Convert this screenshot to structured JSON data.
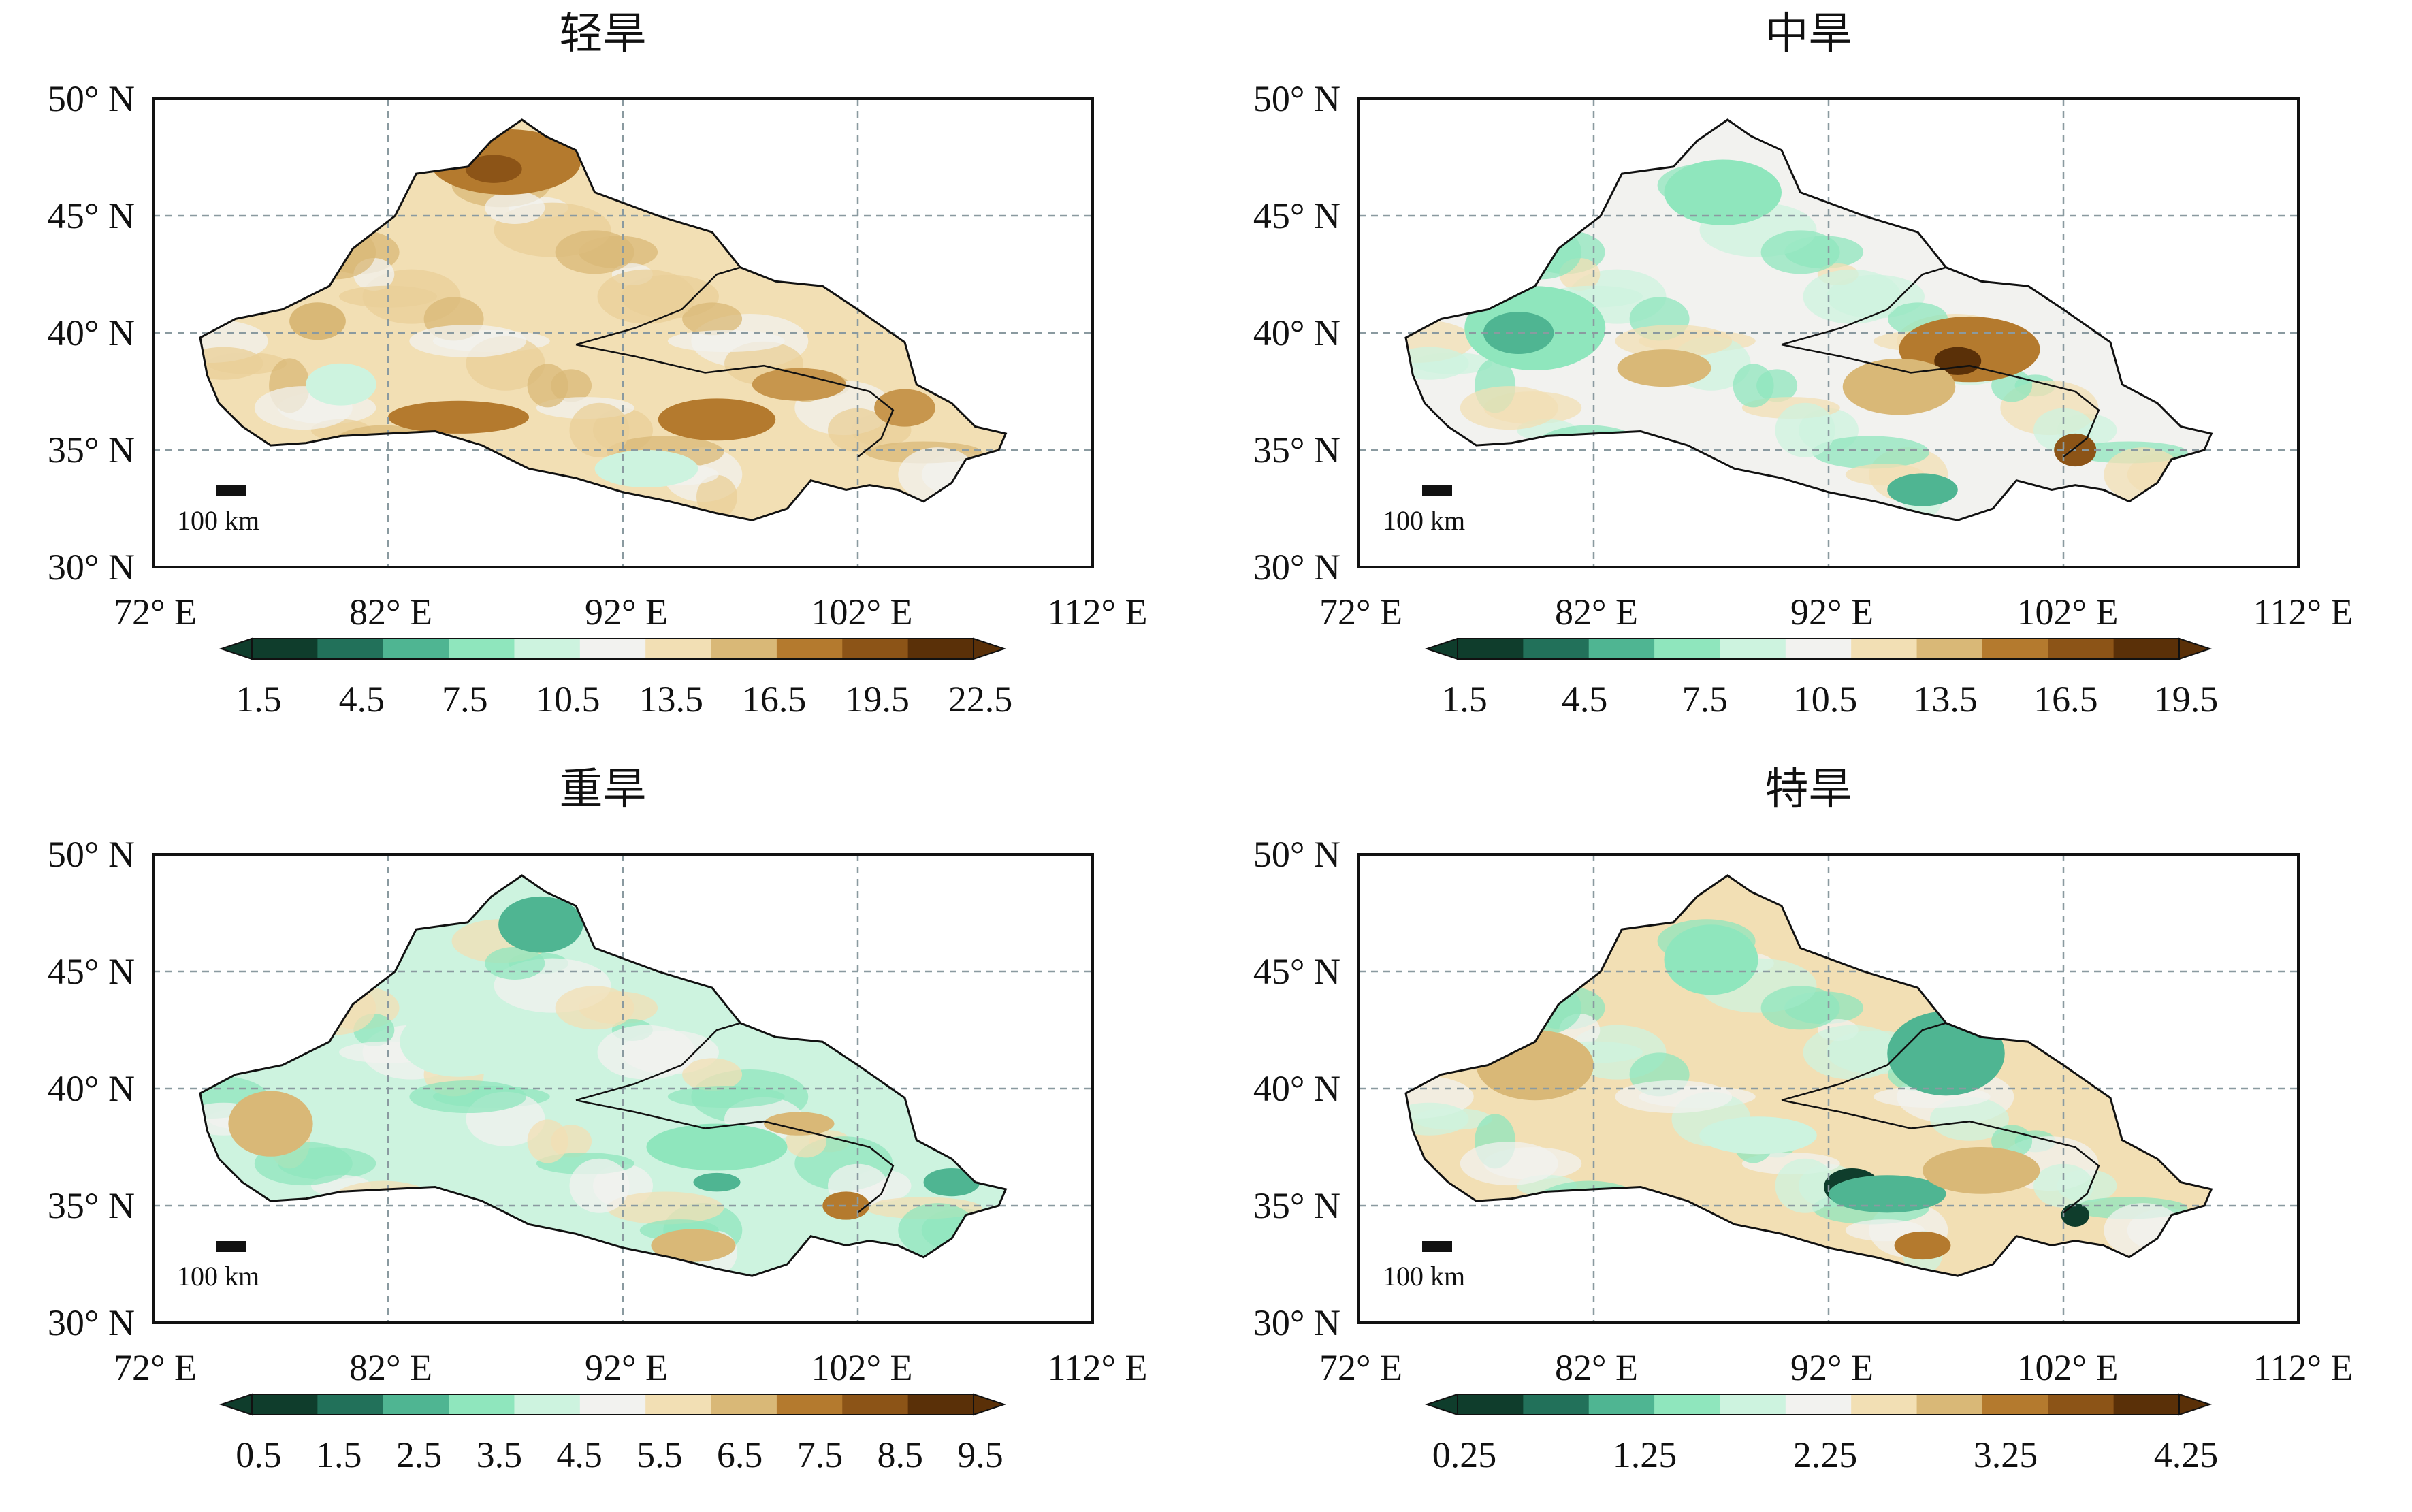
{
  "panels": [
    {
      "title": "轻旱",
      "lat_labels": [
        "50° N",
        "45° N",
        "40° N",
        "35° N",
        "30° N"
      ],
      "lon_labels": [
        "72° E",
        "82° E",
        "92° E",
        "102° E",
        "112° E"
      ],
      "scale_bar_label": "100 km",
      "colorbar": {
        "tick_labels": [
          "1.5",
          "4.5",
          "7.5",
          "10.5",
          "13.5",
          "16.5",
          "19.5",
          "22.5"
        ],
        "colors": [
          "#0f3d2c",
          "#22715a",
          "#4fb592",
          "#8fe6bd",
          "#cdf3df",
          "#f2f2ef",
          "#f2dfb4",
          "#d9b877",
          "#b47a2e",
          "#8c5417",
          "#5a3008"
        ]
      },
      "tone": "brown"
    },
    {
      "title": "中旱",
      "lat_labels": [
        "50° N",
        "45° N",
        "40° N",
        "35° N",
        "30° N"
      ],
      "lon_labels": [
        "72° E",
        "82° E",
        "92° E",
        "102° E",
        "112° E"
      ],
      "scale_bar_label": "100 km",
      "colorbar": {
        "tick_labels": [
          "1.5",
          "4.5",
          "7.5",
          "10.5",
          "13.5",
          "16.5",
          "19.5"
        ],
        "colors": [
          "#0f3d2c",
          "#22715a",
          "#4fb592",
          "#8fe6bd",
          "#cdf3df",
          "#f2f2ef",
          "#f2dfb4",
          "#d9b877",
          "#b47a2e",
          "#8c5417",
          "#5a3008"
        ]
      },
      "tone": "mixed"
    },
    {
      "title": "重旱",
      "lat_labels": [
        "50° N",
        "45° N",
        "40° N",
        "35° N",
        "30° N"
      ],
      "lon_labels": [
        "72° E",
        "82° E",
        "92° E",
        "102° E",
        "112° E"
      ],
      "scale_bar_label": "100 km",
      "colorbar": {
        "tick_labels": [
          "0.5",
          "1.5",
          "2.5",
          "3.5",
          "4.5",
          "5.5",
          "6.5",
          "7.5",
          "8.5",
          "9.5"
        ],
        "colors": [
          "#0f3d2c",
          "#22715a",
          "#4fb592",
          "#8fe6bd",
          "#cdf3df",
          "#f2f2ef",
          "#f2dfb4",
          "#d9b877",
          "#b47a2e",
          "#8c5417",
          "#5a3008"
        ]
      },
      "tone": "green"
    },
    {
      "title": "特旱",
      "lat_labels": [
        "50° N",
        "45° N",
        "40° N",
        "35° N",
        "30° N"
      ],
      "lon_labels": [
        "72° E",
        "82° E",
        "92° E",
        "102° E",
        "112° E"
      ],
      "scale_bar_label": "100 km",
      "colorbar": {
        "tick_labels": [
          "0.25",
          "1.25",
          "2.25",
          "3.25",
          "4.25"
        ],
        "colors": [
          "#0f3d2c",
          "#22715a",
          "#4fb592",
          "#8fe6bd",
          "#cdf3df",
          "#f2f2ef",
          "#f2dfb4",
          "#d9b877",
          "#b47a2e",
          "#8c5417",
          "#5a3008"
        ]
      },
      "tone": "mixed-green"
    }
  ],
  "map": {
    "lon_range": [
      72,
      112
    ],
    "lat_range": [
      30,
      50
    ],
    "gridlines": "dashed",
    "grid_lons": [
      82,
      92,
      102
    ],
    "grid_lats": [
      35,
      40,
      45
    ]
  }
}
